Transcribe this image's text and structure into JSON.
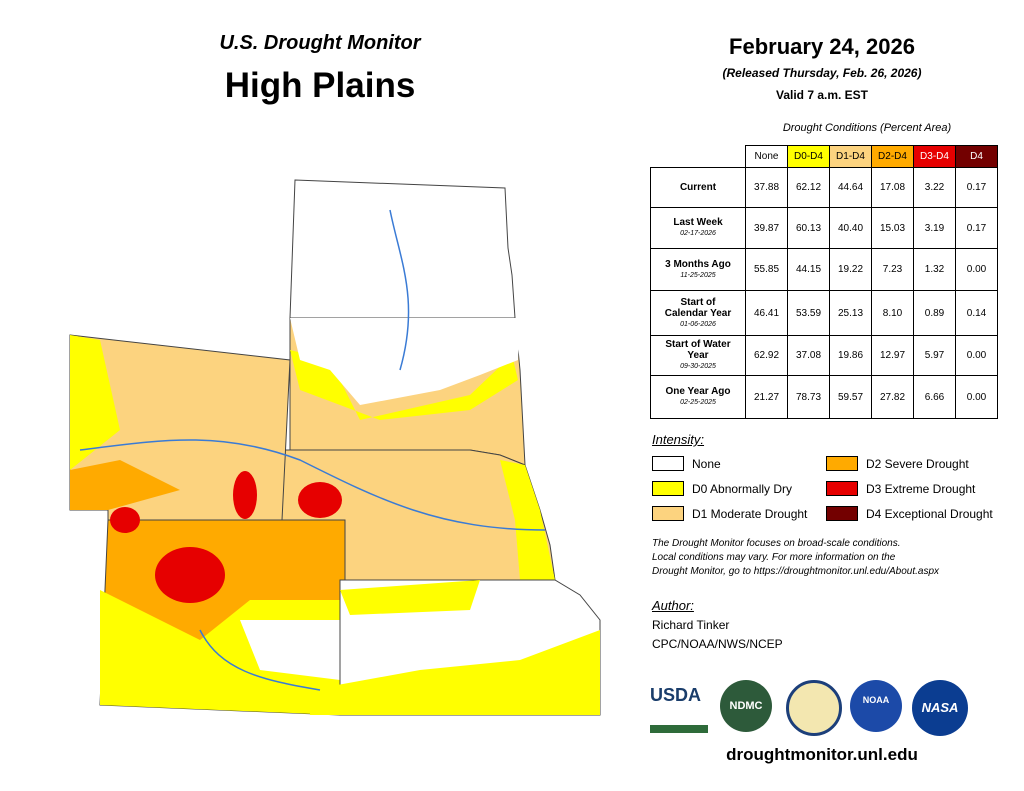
{
  "header": {
    "title": "U.S. Drought Monitor",
    "region": "High Plains",
    "date": "February 24, 2026",
    "released": "(Released Thursday, Feb. 26, 2026)",
    "valid": "Valid 7 a.m. EST"
  },
  "table": {
    "caption": "Drought Conditions (Percent Area)",
    "columns": [
      {
        "label": "None",
        "color": "#ffffff",
        "text": "#000000"
      },
      {
        "label": "D0-D4",
        "color": "#ffff00",
        "text": "#000000"
      },
      {
        "label": "D1-D4",
        "color": "#fcd37f",
        "text": "#000000"
      },
      {
        "label": "D2-D4",
        "color": "#ffaa00",
        "text": "#000000"
      },
      {
        "label": "D3-D4",
        "color": "#e60000",
        "text": "#ffffff"
      },
      {
        "label": "D4",
        "color": "#730000",
        "text": "#ffffff"
      }
    ],
    "rows": [
      {
        "label": "Current",
        "values": [
          "37.88",
          "62.12",
          "44.64",
          "17.08",
          "3.22",
          "0.17"
        ]
      },
      {
        "label": "Last Week",
        "date": "02-17-2026",
        "values": [
          "39.87",
          "60.13",
          "40.40",
          "15.03",
          "3.19",
          "0.17"
        ]
      },
      {
        "label": "3 Months Ago",
        "date": "11-25-2025",
        "values": [
          "55.85",
          "44.15",
          "19.22",
          "7.23",
          "1.32",
          "0.00"
        ]
      },
      {
        "label": "Start of Calendar Year",
        "date": "01-06-2026",
        "values": [
          "46.41",
          "53.59",
          "25.13",
          "8.10",
          "0.89",
          "0.14"
        ]
      },
      {
        "label": "Start of Water Year",
        "date": "09-30-2025",
        "values": [
          "62.92",
          "37.08",
          "19.86",
          "12.97",
          "5.97",
          "0.00"
        ]
      },
      {
        "label": "One Year Ago",
        "date": "02-25-2025",
        "values": [
          "21.27",
          "78.73",
          "59.57",
          "27.82",
          "6.66",
          "0.00"
        ]
      }
    ]
  },
  "legend": {
    "title": "Intensity:",
    "items": [
      {
        "label": "None",
        "color": "#ffffff"
      },
      {
        "label": "D0 Abnormally Dry",
        "color": "#ffff00"
      },
      {
        "label": "D1 Moderate Drought",
        "color": "#fcd37f"
      },
      {
        "label": "D2 Severe Drought",
        "color": "#ffaa00"
      },
      {
        "label": "D3 Extreme Drought",
        "color": "#e60000"
      },
      {
        "label": "D4 Exceptional Drought",
        "color": "#730000"
      }
    ]
  },
  "note": [
    "The Drought Monitor focuses on broad-scale conditions.",
    "Local conditions may vary. For more information on the",
    "Drought Monitor, go to https://droughtmonitor.unl.edu/About.aspx"
  ],
  "author": {
    "label": "Author:",
    "name": "Richard Tinker",
    "org": "CPC/NOAA/NWS/NCEP"
  },
  "logos": [
    "USDA",
    "NDMC",
    "NOAA",
    "NASA"
  ],
  "url": "droughtmonitor.unl.edu"
}
